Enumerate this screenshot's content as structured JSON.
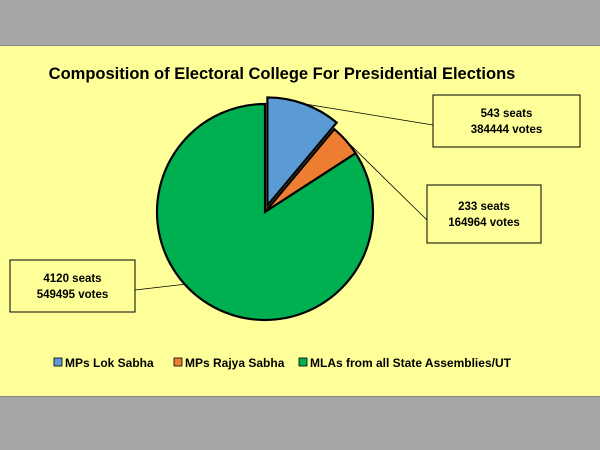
{
  "chart_data": {
    "type": "pie",
    "title": "Composition of Electoral College For Presidential Elections",
    "slices": [
      {
        "name": "MPs  Lok Sabha",
        "seats": 543,
        "votes": 384444,
        "seats_label": "543 seats",
        "votes_label": "384444 votes",
        "color": "#5b9bd5",
        "exploded": true
      },
      {
        "name": "MPs Rajya Sabha",
        "seats": 233,
        "votes": 164964,
        "seats_label": "233 seats",
        "votes_label": "164964 votes",
        "color": "#ed7d31",
        "exploded": false
      },
      {
        "name": "MLAs from all State Assemblies/UT",
        "seats": 4120,
        "votes": 549495,
        "seats_label": "4120 seats",
        "votes_label": "549495 votes",
        "color": "#00b050",
        "exploded": false
      }
    ],
    "legend_position": "bottom"
  }
}
